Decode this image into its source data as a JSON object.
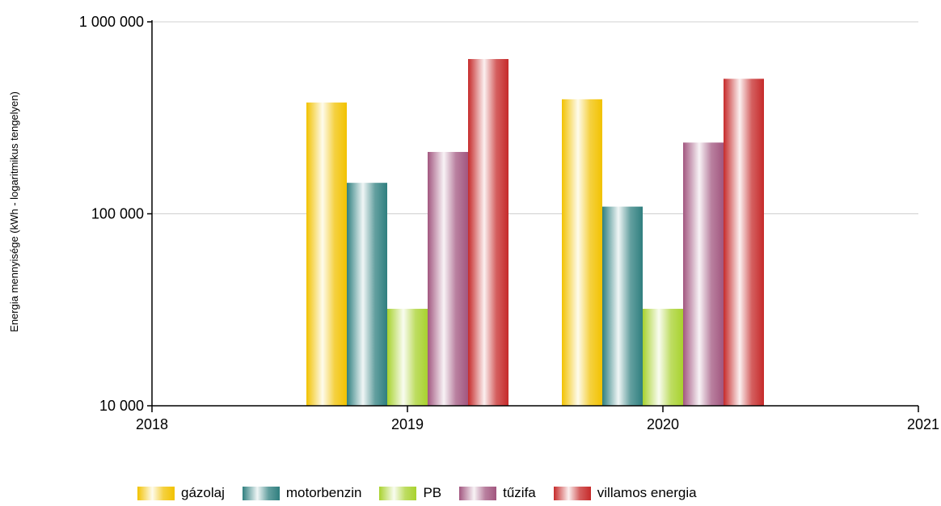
{
  "chart_data": {
    "type": "bar",
    "xlabel": "",
    "ylabel": "Energia mennyisége (kWh - logaritmikus tengelyen)",
    "yscale": "log",
    "ylim": [
      10000,
      1000000
    ],
    "xlim": [
      2018,
      2021
    ],
    "x_ticks": [
      "2018",
      "2019",
      "2020",
      "2021"
    ],
    "y_ticks": [
      "10 000",
      "100 000",
      "1 000 000"
    ],
    "categories": [
      "2019",
      "2020"
    ],
    "grid": "horizontal",
    "legend_position": "bottom",
    "series": [
      {
        "name": "gázolaj",
        "color": "#f2c200",
        "values": [
          380000,
          395000
        ]
      },
      {
        "name": "motorbenzin",
        "color": "#2f7f7f",
        "values": [
          145000,
          109000
        ]
      },
      {
        "name": "PB",
        "color": "#a8d22e",
        "values": [
          32000,
          32000
        ]
      },
      {
        "name": "tűzifa",
        "color": "#a2567f",
        "values": [
          210000,
          235000
        ]
      },
      {
        "name": "villamos energia",
        "color": "#c62a2a",
        "values": [
          640000,
          505000
        ]
      }
    ]
  }
}
